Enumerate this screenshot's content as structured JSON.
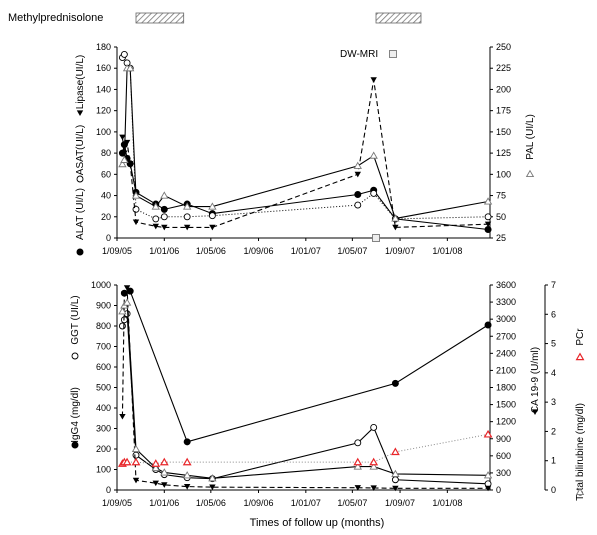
{
  "header": {
    "treatment_label": "Methylprednisolone",
    "treatment_bars": [
      [
        "2005-10-20",
        "2006-02-20"
      ],
      [
        "2007-07-01",
        "2007-10-25"
      ]
    ],
    "hatch_color": "#777777"
  },
  "x_axis": {
    "tick_labels": [
      "1/09/05",
      "1/01/06",
      "1/05/06",
      "1/09/06",
      "1/01/07",
      "1/05/07",
      "1/09/07",
      "1/01/08"
    ],
    "tick_dates": [
      "2005-09-01",
      "2006-01-01",
      "2006-05-01",
      "2006-09-01",
      "2007-01-01",
      "2007-05-01",
      "2007-09-01",
      "2008-01-01"
    ],
    "range": [
      "2005-09-01",
      "2008-04-20"
    ],
    "label": "Times of follow up (months)"
  },
  "chart_data": [
    {
      "type": "line",
      "panel": "top",
      "ylim_left": [
        0,
        180
      ],
      "yticks_left": [
        0,
        20,
        40,
        60,
        80,
        100,
        120,
        140,
        160,
        180
      ],
      "ylim_right": [
        25,
        250
      ],
      "yticks_right": [
        25,
        50,
        75,
        100,
        125,
        150,
        175,
        200,
        225,
        250
      ],
      "left_axis_labels": [
        {
          "text": "ALAT (UI/L)",
          "marker": "filled-circle"
        },
        {
          "text": "ASAT(UI/L)",
          "marker": "open-circle"
        },
        {
          "text": "Lipase(UI/L)",
          "marker": "filled-triangle-down"
        }
      ],
      "right_axis_label": {
        "text": "PAL (UI/L)",
        "marker": "open-triangle"
      },
      "annotation": {
        "text": "DW-MRI",
        "marker": "open-square",
        "date": "2007-07-01"
      },
      "series": [
        {
          "marker": "filled-circle",
          "style": "solid",
          "axis": "left",
          "x": [
            "2005-09-15",
            "2005-09-20",
            "2005-09-27",
            "2005-10-05",
            "2005-10-20",
            "2005-12-10",
            "2006-01-01",
            "2006-03-01",
            "2006-05-05",
            "2007-05-15",
            "2007-06-25",
            "2007-08-20",
            "2008-04-15"
          ],
          "y": [
            80,
            88,
            75,
            70,
            43,
            32,
            27,
            32,
            23,
            41,
            45,
            18,
            8
          ]
        },
        {
          "marker": "open-circle",
          "style": "dotted",
          "axis": "left",
          "x": [
            "2005-09-15",
            "2005-09-20",
            "2005-09-27",
            "2005-10-05",
            "2005-10-20",
            "2005-12-10",
            "2006-01-01",
            "2006-03-01",
            "2006-05-05",
            "2007-05-15",
            "2007-06-25",
            "2007-08-20",
            "2008-04-15"
          ],
          "y": [
            170,
            173,
            165,
            160,
            27,
            18,
            20,
            20,
            21,
            31,
            42,
            18,
            20
          ]
        },
        {
          "marker": "filled-triangle-down",
          "style": "dashed",
          "axis": "left",
          "x": [
            "2005-09-15",
            "2005-09-20",
            "2005-09-27",
            "2005-10-05",
            "2005-10-20",
            "2005-12-10",
            "2006-01-01",
            "2006-03-01",
            "2006-05-05",
            "2007-05-15",
            "2007-06-25",
            "2007-08-20",
            "2008-04-15"
          ],
          "y": [
            95,
            80,
            90,
            70,
            15,
            11,
            10,
            10,
            10,
            60,
            149,
            10,
            13
          ]
        },
        {
          "marker": "open-triangle",
          "style": "solid",
          "axis": "right",
          "x": [
            "2005-09-15",
            "2005-09-20",
            "2005-09-27",
            "2005-10-05",
            "2005-10-20",
            "2005-12-10",
            "2006-01-01",
            "2006-03-01",
            "2006-05-05",
            "2007-05-15",
            "2007-06-25",
            "2007-08-20",
            "2008-04-15"
          ],
          "y": [
            112,
            117,
            225,
            225,
            75,
            62,
            75,
            62,
            62,
            110,
            122,
            48,
            68
          ]
        }
      ]
    },
    {
      "type": "line",
      "panel": "bottom",
      "ylim_left": [
        0,
        1000
      ],
      "yticks_left": [
        0,
        100,
        200,
        300,
        400,
        500,
        600,
        700,
        800,
        900,
        1000
      ],
      "ylim_ca": [
        0,
        3600
      ],
      "yticks_ca": [
        0,
        300,
        600,
        900,
        1200,
        1500,
        1800,
        2100,
        2400,
        2700,
        3000,
        3300,
        3600
      ],
      "ylim_bili": [
        0,
        7
      ],
      "yticks_bili": [
        0,
        1,
        2,
        3,
        4,
        5,
        6,
        7
      ],
      "left_axis_labels": [
        {
          "text": "IgG4 (mg/dl)",
          "marker": "filled-circle"
        },
        {
          "text": "GGT (UI/L)",
          "marker": "open-circle"
        }
      ],
      "ca_axis_label": {
        "text": "CA 19-9 (U/ml)",
        "marker": "filled-triangle-down"
      },
      "bili_axis_labels": [
        {
          "text": "Total bilirubine (mg/dl)",
          "marker": "open-triangle"
        },
        {
          "text": "PCr",
          "marker": "red-triangle"
        }
      ],
      "series": [
        {
          "marker": "filled-circle",
          "style": "solid",
          "axis": "left",
          "x": [
            "2005-09-20",
            "2005-10-05",
            "2006-03-01",
            "2007-08-20",
            "2008-04-15"
          ],
          "y": [
            960,
            970,
            235,
            520,
            805
          ]
        },
        {
          "marker": "open-circle",
          "style": "solid",
          "axis": "left",
          "x": [
            "2005-09-15",
            "2005-09-20",
            "2005-09-27",
            "2005-10-20",
            "2005-12-10",
            "2006-01-01",
            "2006-03-01",
            "2006-05-05",
            "2007-05-15",
            "2007-06-25",
            "2007-08-20",
            "2008-04-15"
          ],
          "y": [
            800,
            830,
            860,
            170,
            100,
            75,
            60,
            55,
            230,
            305,
            50,
            30
          ]
        },
        {
          "marker": "filled-triangle-down",
          "style": "dashed",
          "axis": "ca",
          "x": [
            "2005-09-15",
            "2005-09-20",
            "2005-09-27",
            "2005-10-20",
            "2005-12-10",
            "2006-01-01",
            "2006-03-01",
            "2006-05-05",
            "2007-05-15",
            "2007-06-25",
            "2007-08-20",
            "2008-04-15"
          ],
          "y": [
            1290,
            3450,
            3550,
            170,
            120,
            90,
            60,
            50,
            40,
            35,
            30,
            30
          ]
        },
        {
          "marker": "open-triangle",
          "style": "solid",
          "axis": "bili",
          "x": [
            "2005-09-15",
            "2005-09-20",
            "2005-09-27",
            "2005-10-20",
            "2005-12-10",
            "2006-01-01",
            "2006-03-01",
            "2006-05-05",
            "2007-05-15",
            "2007-06-25",
            "2007-08-20",
            "2008-04-15"
          ],
          "y": [
            6.1,
            6.3,
            6.4,
            1.4,
            0.75,
            0.6,
            0.5,
            0.4,
            0.8,
            0.8,
            0.55,
            0.5
          ]
        },
        {
          "marker": "red-triangle",
          "style": "dotted",
          "axis": "bili",
          "x": [
            "2005-09-15",
            "2005-09-20",
            "2005-09-27",
            "2005-10-20",
            "2005-12-10",
            "2006-01-01",
            "2006-03-01",
            "2007-05-15",
            "2007-06-25",
            "2007-08-20",
            "2008-04-15"
          ],
          "y": [
            0.9,
            0.95,
            0.95,
            0.95,
            0.9,
            0.95,
            0.95,
            0.95,
            0.95,
            1.3,
            1.9
          ]
        }
      ]
    }
  ],
  "colors": {
    "red_marker": "#e8262a",
    "line": "#000000"
  }
}
